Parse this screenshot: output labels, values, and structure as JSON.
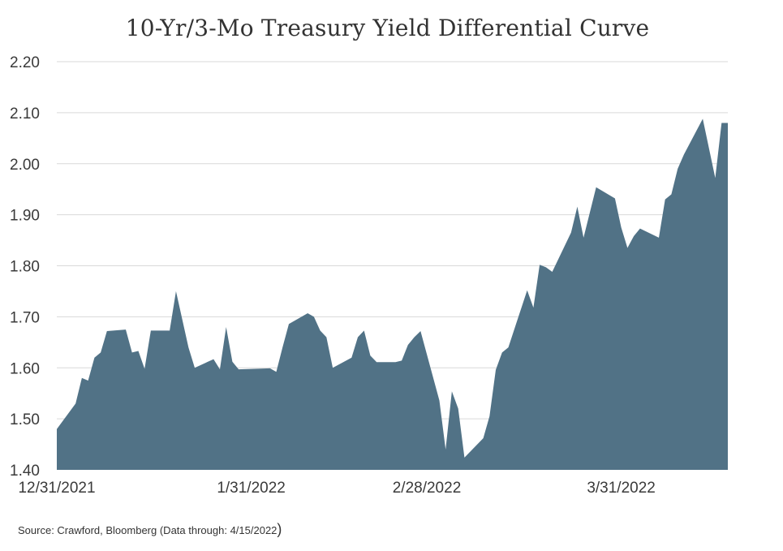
{
  "chart_data": {
    "type": "area",
    "title": "10-Yr/3-Mo Treasury Yield Differential Curve",
    "xlabel": "",
    "ylabel": "",
    "ylim": [
      1.4,
      2.2
    ],
    "yticks": [
      "1.40",
      "1.50",
      "1.60",
      "1.70",
      "1.80",
      "1.90",
      "2.00",
      "2.10",
      "2.20"
    ],
    "xticks": [
      {
        "label": "12/31/2021",
        "x": "2021-12-31"
      },
      {
        "label": "1/31/2022",
        "x": "2022-01-31"
      },
      {
        "label": "2/28/2022",
        "x": "2022-02-28"
      },
      {
        "label": "3/31/2022",
        "x": "2022-03-31"
      }
    ],
    "grid": true,
    "color": "#517286",
    "series": [
      {
        "points": [
          [
            "2021-12-31",
            1.48
          ],
          [
            "2022-01-03",
            1.53
          ],
          [
            "2022-01-04",
            1.58
          ],
          [
            "2022-01-05",
            1.575
          ],
          [
            "2022-01-06",
            1.62
          ],
          [
            "2022-01-07",
            1.63
          ],
          [
            "2022-01-08",
            1.672
          ],
          [
            "2022-01-11",
            1.675
          ],
          [
            "2022-01-12",
            1.63
          ],
          [
            "2022-01-13",
            1.633
          ],
          [
            "2022-01-14",
            1.598
          ],
          [
            "2022-01-15",
            1.673
          ],
          [
            "2022-01-18",
            1.673
          ],
          [
            "2022-01-19",
            1.75
          ],
          [
            "2022-01-21",
            1.64
          ],
          [
            "2022-01-22",
            1.6
          ],
          [
            "2022-01-25",
            1.617
          ],
          [
            "2022-01-26",
            1.597
          ],
          [
            "2022-01-27",
            1.68
          ],
          [
            "2022-01-28",
            1.612
          ],
          [
            "2022-01-29",
            1.597
          ],
          [
            "2022-02-03",
            1.599
          ],
          [
            "2022-02-04",
            1.592
          ],
          [
            "2022-02-05",
            1.64
          ],
          [
            "2022-02-06",
            1.686
          ],
          [
            "2022-02-09",
            1.707
          ],
          [
            "2022-02-10",
            1.7
          ],
          [
            "2022-02-11",
            1.673
          ],
          [
            "2022-02-12",
            1.66
          ],
          [
            "2022-02-13",
            1.6
          ],
          [
            "2022-02-16",
            1.62
          ],
          [
            "2022-02-17",
            1.66
          ],
          [
            "2022-02-18",
            1.673
          ],
          [
            "2022-02-19",
            1.624
          ],
          [
            "2022-02-20",
            1.611
          ],
          [
            "2022-02-23",
            1.611
          ],
          [
            "2022-02-24",
            1.614
          ],
          [
            "2022-02-25",
            1.645
          ],
          [
            "2022-02-26",
            1.66
          ],
          [
            "2022-02-27",
            1.672
          ],
          [
            "2022-03-02",
            1.536
          ],
          [
            "2022-03-03",
            1.44
          ],
          [
            "2022-03-04",
            1.554
          ],
          [
            "2022-03-05",
            1.52
          ],
          [
            "2022-03-06",
            1.424
          ],
          [
            "2022-03-09",
            1.462
          ],
          [
            "2022-03-10",
            1.505
          ],
          [
            "2022-03-11",
            1.596
          ],
          [
            "2022-03-12",
            1.63
          ],
          [
            "2022-03-13",
            1.64
          ],
          [
            "2022-03-16",
            1.752
          ],
          [
            "2022-03-17",
            1.718
          ],
          [
            "2022-03-18",
            1.802
          ],
          [
            "2022-03-19",
            1.797
          ],
          [
            "2022-03-20",
            1.788
          ],
          [
            "2022-03-23",
            1.865
          ],
          [
            "2022-03-24",
            1.916
          ],
          [
            "2022-03-25",
            1.855
          ],
          [
            "2022-03-27",
            1.954
          ],
          [
            "2022-03-30",
            1.932
          ],
          [
            "2022-03-31",
            1.875
          ],
          [
            "2022-04-01",
            1.835
          ],
          [
            "2022-04-02",
            1.858
          ],
          [
            "2022-04-03",
            1.873
          ],
          [
            "2022-04-06",
            1.855
          ],
          [
            "2022-04-07",
            1.93
          ],
          [
            "2022-04-08",
            1.94
          ],
          [
            "2022-04-09",
            1.99
          ],
          [
            "2022-04-10",
            2.018
          ],
          [
            "2022-04-13",
            2.088
          ],
          [
            "2022-04-15",
            1.972
          ],
          [
            "2022-04-16",
            2.08
          ],
          [
            "2022-04-17",
            2.08
          ]
        ]
      }
    ]
  },
  "source_note": "Source: Crawford, Bloomberg (Data through: 4/15/2022",
  "source_note_close": ")"
}
